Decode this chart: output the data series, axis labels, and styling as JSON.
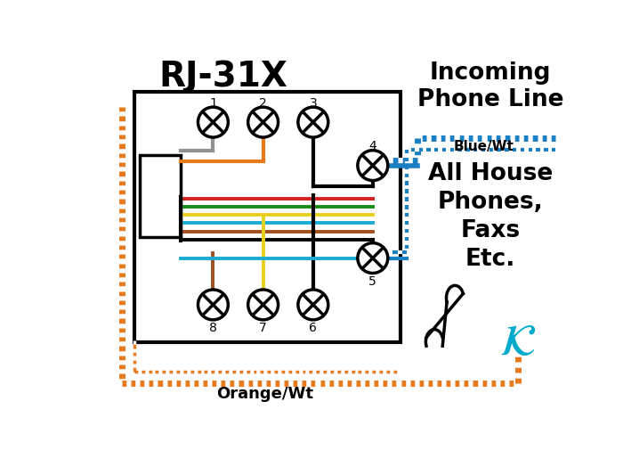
{
  "bg_color": "#ffffff",
  "title": "RJ-31X",
  "incoming_label": "Incoming\nPhone Line",
  "blue_wt_label": "Blue/Wt",
  "orange_wt_label": "Orange/Wt",
  "all_house_label": "All House\nPhones,\nFaxs\nEtc.",
  "colors": {
    "black": "#000000",
    "blue": "#1b7fc4",
    "orange": "#e87a1e",
    "white": "#ffffff",
    "red": "#d42020",
    "green": "#1a8c1a",
    "yellow": "#e8d020",
    "cyan_blue": "#1aaad4",
    "brown": "#a05020",
    "gray": "#909090"
  },
  "logo_color": "#00aacc"
}
